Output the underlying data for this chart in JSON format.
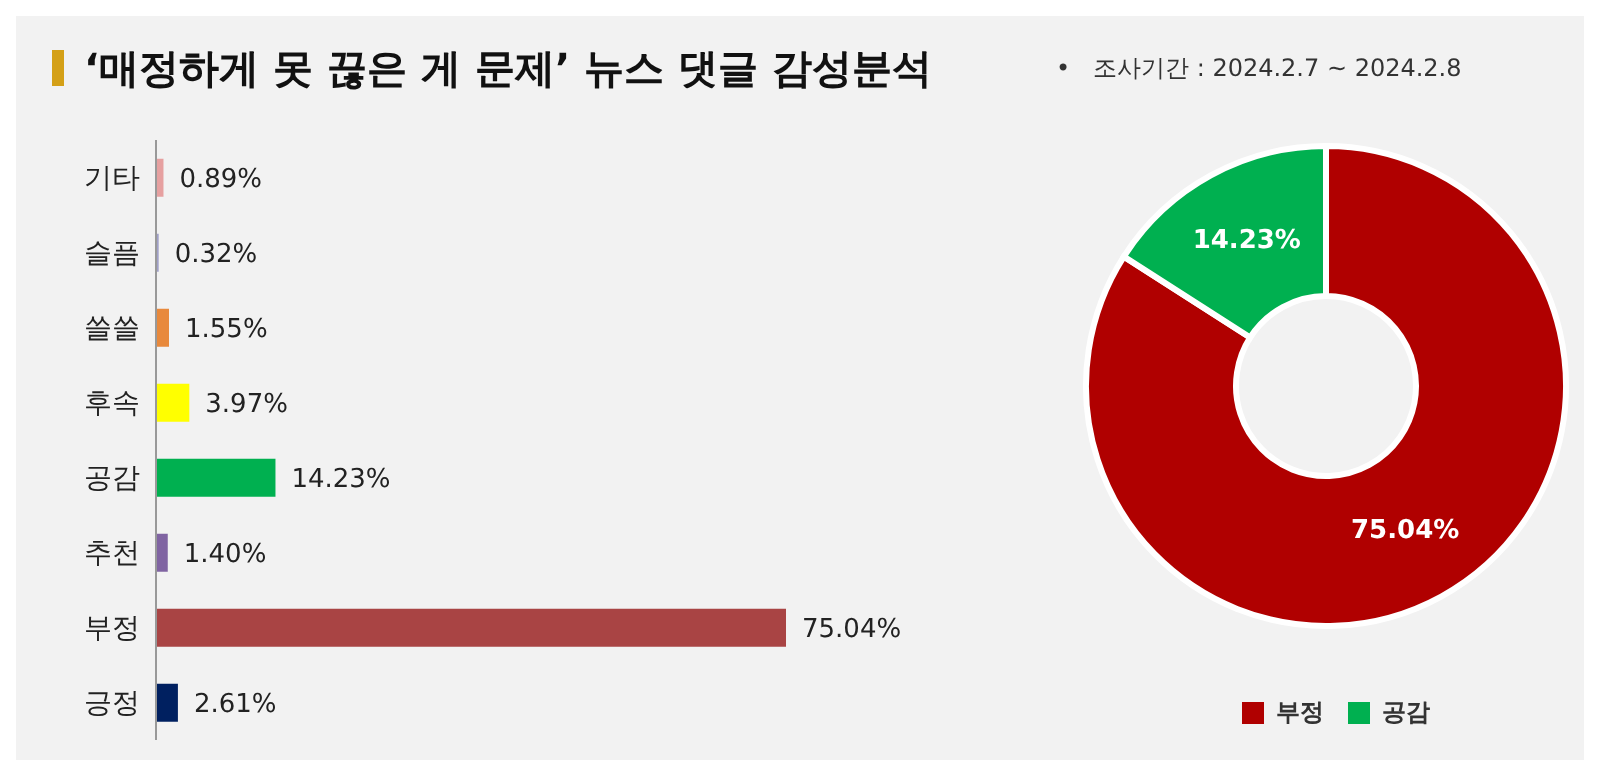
{
  "chart_data": [
    {
      "type": "bar",
      "title": "‘매정하게 못 끊은 게 문제’ 뉴스 댓글 감성분석",
      "orientation": "horizontal",
      "categories": [
        "기타",
        "슬픔",
        "쓸쓸",
        "후속",
        "공감",
        "추천",
        "부정",
        "긍정"
      ],
      "values": [
        0.89,
        0.32,
        1.55,
        3.97,
        14.23,
        1.4,
        75.04,
        2.61
      ],
      "colors": [
        "#e6a0a0",
        "#a0a0c8",
        "#e8893c",
        "#ffff00",
        "#00b050",
        "#8064a2",
        "#a94444",
        "#002060"
      ],
      "value_labels": [
        "0.89%",
        "0.32%",
        "1.55%",
        "3.97%",
        "14.23%",
        "1.40%",
        "75.04%",
        "2.61%"
      ],
      "tick_labels": "y"
    },
    {
      "type": "donut",
      "subtitle": "•   조사기간 : 2024.2.7 ~ 2024.2.8",
      "categories": [
        "부정",
        "공감"
      ],
      "values": [
        75.04,
        14.23
      ],
      "colors": [
        "#b00000",
        "#00b050"
      ],
      "value_labels": [
        "75.04%",
        "14.23%"
      ],
      "legend": "bottom"
    }
  ]
}
